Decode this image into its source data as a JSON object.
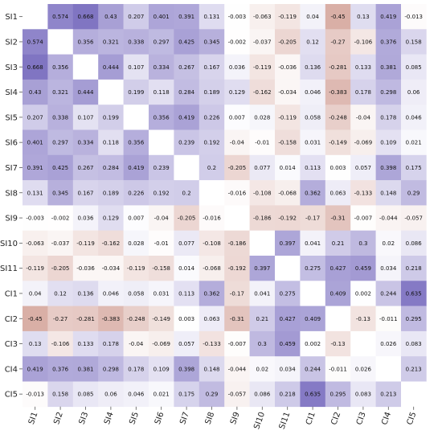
{
  "chart_data": {
    "type": "heatmap",
    "rows": [
      "SI1",
      "SI2",
      "SI3",
      "SI4",
      "SI5",
      "SI6",
      "SI7",
      "SI8",
      "SI9",
      "SI10",
      "SI11",
      "CI1",
      "CI2",
      "CI3",
      "CI4",
      "CI5"
    ],
    "columns": [
      "SI1",
      "SI2",
      "SI3",
      "SI4",
      "SI5",
      "SI6",
      "SI7",
      "SI8",
      "SI9",
      "SI10",
      "SI11",
      "CI1",
      "CI2",
      "CI3",
      "CI4",
      "CI5"
    ],
    "values": [
      [
        null,
        0.574,
        0.668,
        0.43,
        0.207,
        0.401,
        0.391,
        0.131,
        -0.003,
        -0.063,
        -0.119,
        0.04,
        -0.45,
        0.13,
        0.419,
        -0.013
      ],
      [
        0.574,
        null,
        0.356,
        0.321,
        0.338,
        0.297,
        0.425,
        0.345,
        -0.002,
        -0.037,
        -0.205,
        0.12,
        -0.27,
        -0.106,
        0.376,
        0.158
      ],
      [
        0.668,
        0.356,
        null,
        0.444,
        0.107,
        0.334,
        0.267,
        0.167,
        0.036,
        -0.119,
        -0.036,
        0.136,
        -0.281,
        0.133,
        0.381,
        0.085
      ],
      [
        0.43,
        0.321,
        0.444,
        null,
        0.199,
        0.118,
        0.284,
        0.189,
        0.129,
        -0.162,
        -0.034,
        0.046,
        -0.383,
        0.178,
        0.298,
        0.06
      ],
      [
        0.207,
        0.338,
        0.107,
        0.199,
        null,
        0.356,
        0.419,
        0.226,
        0.007,
        0.028,
        -0.119,
        0.058,
        -0.248,
        -0.04,
        0.178,
        0.046
      ],
      [
        0.401,
        0.297,
        0.334,
        0.118,
        0.356,
        null,
        0.239,
        0.192,
        -0.04,
        -0.01,
        -0.158,
        0.031,
        -0.149,
        -0.069,
        0.109,
        0.021
      ],
      [
        0.391,
        0.425,
        0.267,
        0.284,
        0.419,
        0.239,
        null,
        0.2,
        -0.205,
        0.077,
        0.014,
        0.113,
        0.003,
        0.057,
        0.398,
        0.175
      ],
      [
        0.131,
        0.345,
        0.167,
        0.189,
        0.226,
        0.192,
        0.2,
        null,
        -0.016,
        -0.108,
        -0.068,
        0.362,
        0.063,
        -0.133,
        0.148,
        0.29
      ],
      [
        -0.003,
        -0.002,
        0.036,
        0.129,
        0.007,
        -0.04,
        -0.205,
        -0.016,
        null,
        -0.186,
        -0.192,
        -0.17,
        -0.31,
        -0.007,
        -0.044,
        -0.057
      ],
      [
        -0.063,
        -0.037,
        -0.119,
        -0.162,
        0.028,
        -0.01,
        0.077,
        -0.108,
        -0.186,
        null,
        0.397,
        0.041,
        0.21,
        0.3,
        0.02,
        0.086
      ],
      [
        -0.119,
        -0.205,
        -0.036,
        -0.034,
        -0.119,
        -0.158,
        0.014,
        -0.068,
        -0.192,
        0.397,
        null,
        0.275,
        0.427,
        0.459,
        0.034,
        0.218
      ],
      [
        0.04,
        0.12,
        0.136,
        0.046,
        0.058,
        0.031,
        0.113,
        0.362,
        -0.17,
        0.041,
        0.275,
        null,
        0.409,
        0.002,
        0.244,
        0.635
      ],
      [
        -0.45,
        -0.27,
        -0.281,
        -0.383,
        -0.248,
        -0.149,
        0.003,
        0.063,
        -0.31,
        0.21,
        0.427,
        0.409,
        null,
        -0.13,
        -0.011,
        0.295
      ],
      [
        0.13,
        -0.106,
        0.133,
        0.178,
        -0.04,
        -0.069,
        0.057,
        -0.133,
        -0.007,
        0.3,
        0.459,
        0.002,
        -0.13,
        null,
        0.026,
        0.083
      ],
      [
        0.419,
        0.376,
        0.381,
        0.298,
        0.178,
        0.109,
        0.398,
        0.148,
        -0.044,
        0.02,
        0.034,
        0.244,
        -0.011,
        0.026,
        null,
        0.213
      ],
      [
        -0.013,
        0.158,
        0.085,
        0.06,
        0.046,
        0.021,
        0.175,
        0.29,
        -0.057,
        0.086,
        0.218,
        0.635,
        0.295,
        0.083,
        0.213,
        null
      ]
    ],
    "value_range": [
      -0.7,
      0.7
    ],
    "colors": {
      "positive": "#7b6fc0",
      "negative": "#c88a7e",
      "neutral": "#ffffff",
      "diagonal": "#ffffff"
    },
    "grid": false,
    "legend": "none"
  }
}
